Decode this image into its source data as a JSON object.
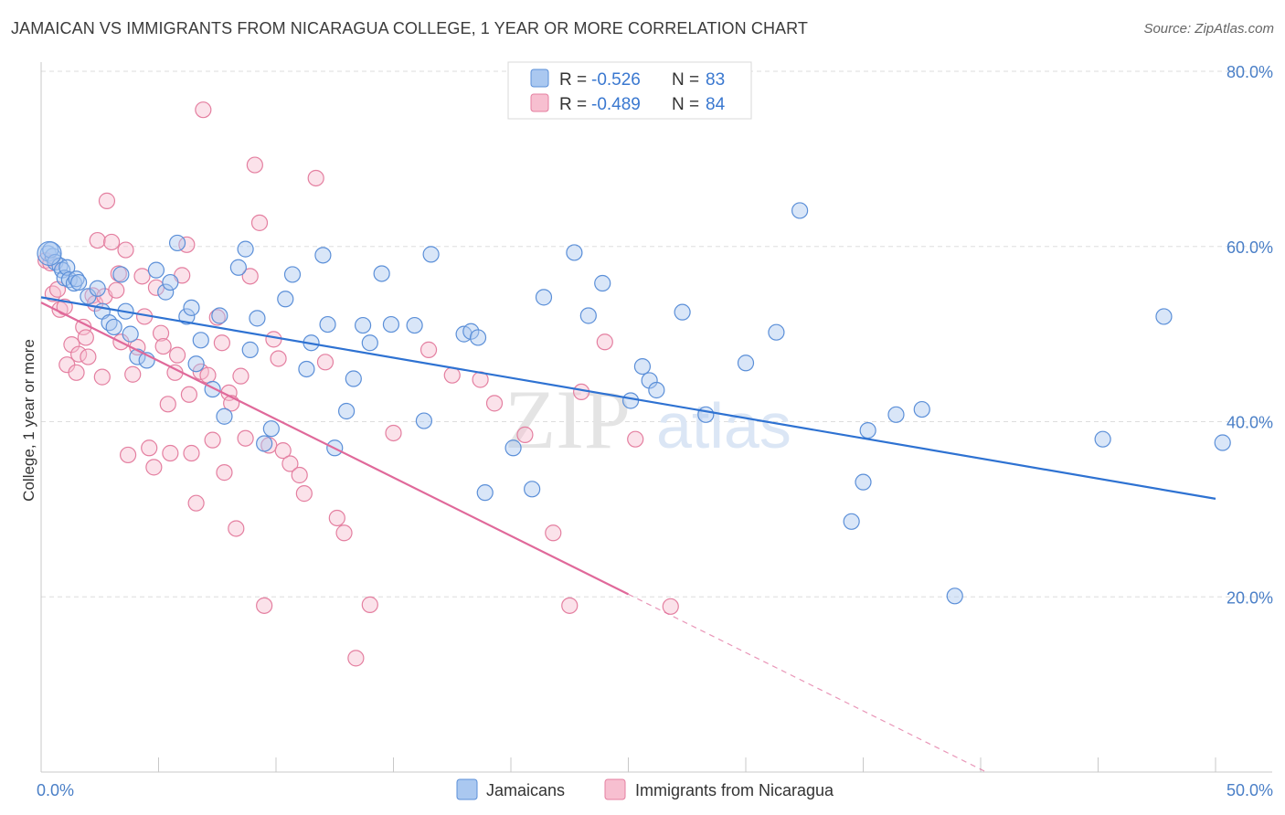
{
  "title": "JAMAICAN VS IMMIGRANTS FROM NICARAGUA COLLEGE, 1 YEAR OR MORE CORRELATION CHART",
  "source": "Source: ZipAtlas.com",
  "watermark": {
    "zip": "ZIP",
    "atlas": "atlas"
  },
  "legend": {
    "r_label": "R =",
    "n_label": "N =",
    "rows": [
      {
        "r": "-0.526",
        "n": "83"
      },
      {
        "r": "-0.489",
        "n": "84"
      }
    ]
  },
  "bottom_legend": [
    "Jamaicans",
    "Immigrants from Nicaragua"
  ],
  "colors": {
    "blue_fill": "#aac8f0",
    "blue_stroke": "#5b8fd8",
    "blue_line": "#2e72d2",
    "pink_fill": "#f7bfd0",
    "pink_stroke": "#e47fa0",
    "pink_line": "#e0699a",
    "grid": "#dddddd",
    "axis_text": "#4a7fc7"
  },
  "chart_data": {
    "type": "scatter",
    "title": "JAMAICAN VS IMMIGRANTS FROM NICARAGUA COLLEGE, 1 YEAR OR MORE CORRELATION CHART",
    "xlabel": "",
    "ylabel": "College, 1 year or more",
    "xlim": [
      0,
      50
    ],
    "ylim": [
      0,
      80
    ],
    "x_tick_labels": [
      "0.0%",
      "50.0%"
    ],
    "y_ticks": [
      20,
      40,
      60,
      80
    ],
    "y_tick_labels": [
      "20.0%",
      "40.0%",
      "60.0%",
      "80.0%"
    ],
    "grid": true,
    "legend_position": "top-center",
    "series": [
      {
        "name": "Jamaicans",
        "r": -0.526,
        "n": 83,
        "trend": {
          "x": [
            0,
            50
          ],
          "y": [
            54.2,
            31.2
          ],
          "dashed_from": null
        },
        "points": [
          [
            0.3,
            59.2
          ],
          [
            0.5,
            58.9
          ],
          [
            0.4,
            59.6
          ],
          [
            0.6,
            58.2
          ],
          [
            0.8,
            57.8
          ],
          [
            0.9,
            57.3
          ],
          [
            1.0,
            56.4
          ],
          [
            1.1,
            57.6
          ],
          [
            1.2,
            56.2
          ],
          [
            1.4,
            55.8
          ],
          [
            1.5,
            56.3
          ],
          [
            1.6,
            55.9
          ],
          [
            2.0,
            54.3
          ],
          [
            2.4,
            55.2
          ],
          [
            2.6,
            52.6
          ],
          [
            2.9,
            51.3
          ],
          [
            3.1,
            50.8
          ],
          [
            3.4,
            56.8
          ],
          [
            3.6,
            52.6
          ],
          [
            3.8,
            50.0
          ],
          [
            4.1,
            47.4
          ],
          [
            4.5,
            47.0
          ],
          [
            4.9,
            57.3
          ],
          [
            5.3,
            54.8
          ],
          [
            5.5,
            55.9
          ],
          [
            5.8,
            60.4
          ],
          [
            6.2,
            52.0
          ],
          [
            6.4,
            53.0
          ],
          [
            6.6,
            46.6
          ],
          [
            6.8,
            49.3
          ],
          [
            7.3,
            43.7
          ],
          [
            7.6,
            52.1
          ],
          [
            7.8,
            40.6
          ],
          [
            8.4,
            57.6
          ],
          [
            8.7,
            59.7
          ],
          [
            8.9,
            48.2
          ],
          [
            9.2,
            51.8
          ],
          [
            9.5,
            37.5
          ],
          [
            9.8,
            39.2
          ],
          [
            10.4,
            54.0
          ],
          [
            10.7,
            56.8
          ],
          [
            11.3,
            46.0
          ],
          [
            11.5,
            49.0
          ],
          [
            12.0,
            59.0
          ],
          [
            12.2,
            51.1
          ],
          [
            12.5,
            37.0
          ],
          [
            13.0,
            41.2
          ],
          [
            13.3,
            44.9
          ],
          [
            13.7,
            51.0
          ],
          [
            14.0,
            49.0
          ],
          [
            14.5,
            56.9
          ],
          [
            14.9,
            51.1
          ],
          [
            15.9,
            51.0
          ],
          [
            16.3,
            40.1
          ],
          [
            16.6,
            59.1
          ],
          [
            18.0,
            50.0
          ],
          [
            18.3,
            50.3
          ],
          [
            18.6,
            49.6
          ],
          [
            18.9,
            31.9
          ],
          [
            20.1,
            37.0
          ],
          [
            20.9,
            32.3
          ],
          [
            21.4,
            54.2
          ],
          [
            22.7,
            59.3
          ],
          [
            23.3,
            52.1
          ],
          [
            23.9,
            55.8
          ],
          [
            25.1,
            42.4
          ],
          [
            25.6,
            46.3
          ],
          [
            25.9,
            44.7
          ],
          [
            26.2,
            43.6
          ],
          [
            27.3,
            52.5
          ],
          [
            28.3,
            40.8
          ],
          [
            30.0,
            46.7
          ],
          [
            31.3,
            50.2
          ],
          [
            32.3,
            64.1
          ],
          [
            34.5,
            28.6
          ],
          [
            35.0,
            33.1
          ],
          [
            35.2,
            39.0
          ],
          [
            36.4,
            40.8
          ],
          [
            37.5,
            41.4
          ],
          [
            38.9,
            20.1
          ],
          [
            45.2,
            38.0
          ],
          [
            47.8,
            52.0
          ],
          [
            50.3,
            37.6
          ]
        ]
      },
      {
        "name": "Immigrants from Nicaragua",
        "r": -0.489,
        "n": 84,
        "trend": {
          "x": [
            0,
            50
          ],
          "y": [
            53.6,
            -13.0
          ],
          "dashed_from": 25.0
        },
        "points": [
          [
            0.2,
            58.4
          ],
          [
            0.4,
            58.1
          ],
          [
            0.5,
            54.6
          ],
          [
            0.7,
            55.1
          ],
          [
            0.8,
            52.8
          ],
          [
            1.0,
            53.1
          ],
          [
            1.1,
            46.5
          ],
          [
            1.3,
            48.8
          ],
          [
            1.5,
            45.6
          ],
          [
            1.6,
            47.7
          ],
          [
            1.8,
            50.8
          ],
          [
            1.9,
            49.6
          ],
          [
            2.0,
            47.4
          ],
          [
            2.2,
            54.4
          ],
          [
            2.3,
            53.5
          ],
          [
            2.4,
            60.7
          ],
          [
            2.6,
            45.1
          ],
          [
            2.7,
            54.3
          ],
          [
            2.8,
            65.2
          ],
          [
            3.0,
            60.5
          ],
          [
            3.2,
            55.0
          ],
          [
            3.3,
            56.9
          ],
          [
            3.4,
            49.1
          ],
          [
            3.6,
            59.6
          ],
          [
            3.7,
            36.2
          ],
          [
            3.9,
            45.4
          ],
          [
            4.1,
            48.5
          ],
          [
            4.3,
            56.6
          ],
          [
            4.4,
            52.0
          ],
          [
            4.6,
            37.0
          ],
          [
            4.8,
            34.8
          ],
          [
            4.9,
            55.3
          ],
          [
            5.1,
            50.1
          ],
          [
            5.2,
            48.6
          ],
          [
            5.4,
            42.0
          ],
          [
            5.5,
            36.4
          ],
          [
            5.7,
            45.6
          ],
          [
            5.8,
            47.6
          ],
          [
            6.0,
            56.7
          ],
          [
            6.2,
            60.2
          ],
          [
            6.3,
            43.1
          ],
          [
            6.4,
            36.4
          ],
          [
            6.6,
            30.7
          ],
          [
            6.8,
            45.7
          ],
          [
            6.9,
            75.6
          ],
          [
            7.1,
            45.3
          ],
          [
            7.3,
            37.9
          ],
          [
            7.5,
            51.9
          ],
          [
            7.7,
            49.0
          ],
          [
            7.8,
            34.2
          ],
          [
            8.0,
            43.3
          ],
          [
            8.1,
            42.1
          ],
          [
            8.3,
            27.8
          ],
          [
            8.5,
            45.2
          ],
          [
            8.7,
            38.1
          ],
          [
            8.9,
            56.6
          ],
          [
            9.1,
            69.3
          ],
          [
            9.3,
            62.7
          ],
          [
            9.5,
            19.0
          ],
          [
            9.7,
            37.3
          ],
          [
            9.9,
            49.4
          ],
          [
            10.1,
            47.2
          ],
          [
            10.3,
            36.7
          ],
          [
            10.6,
            35.2
          ],
          [
            11.0,
            33.9
          ],
          [
            11.2,
            31.8
          ],
          [
            11.7,
            67.8
          ],
          [
            12.1,
            46.8
          ],
          [
            12.6,
            29.0
          ],
          [
            12.9,
            27.3
          ],
          [
            13.4,
            13.0
          ],
          [
            14.0,
            19.1
          ],
          [
            15.0,
            38.7
          ],
          [
            16.5,
            48.2
          ],
          [
            17.5,
            45.3
          ],
          [
            18.7,
            44.8
          ],
          [
            19.3,
            42.1
          ],
          [
            20.6,
            38.5
          ],
          [
            21.8,
            27.3
          ],
          [
            22.5,
            19.0
          ],
          [
            23.0,
            43.4
          ],
          [
            24.0,
            49.1
          ],
          [
            25.3,
            38.0
          ],
          [
            26.8,
            18.9
          ]
        ]
      }
    ]
  }
}
